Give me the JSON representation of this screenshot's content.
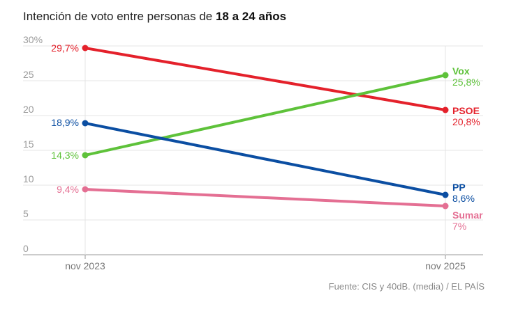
{
  "title": {
    "text_plain": "Intención de voto entre personas de ",
    "text_bold": "18 a 24 años"
  },
  "source": "Fuente: CIS y 40dB. (media) / EL PAÍS",
  "chart_data": {
    "type": "line",
    "title": "Intención de voto entre personas de 18 a 24 años",
    "xlabel": "",
    "ylabel": "",
    "x": [
      "nov 2023",
      "nov 2025"
    ],
    "ylim": [
      0,
      30
    ],
    "yticks": [
      0,
      5,
      10,
      15,
      20,
      25,
      30
    ],
    "ytick_labels": [
      "0",
      "5",
      "10",
      "15",
      "20",
      "25",
      "30%"
    ],
    "grid": true,
    "series": [
      {
        "name": "PSOE",
        "color": "#e4212b",
        "values": [
          29.7,
          20.8
        ],
        "labels": [
          "29,7%",
          "20,8%"
        ]
      },
      {
        "name": "Vox",
        "color": "#5ec23a",
        "values": [
          14.3,
          25.8
        ],
        "labels": [
          "14,3%",
          "25,8%"
        ]
      },
      {
        "name": "PP",
        "color": "#0b4ea2",
        "values": [
          18.9,
          8.6
        ],
        "labels": [
          "18,9%",
          "8,6%"
        ]
      },
      {
        "name": "Sumar",
        "color": "#e46f93",
        "values": [
          9.4,
          7
        ],
        "labels": [
          "9,4%",
          "7%"
        ]
      }
    ]
  }
}
